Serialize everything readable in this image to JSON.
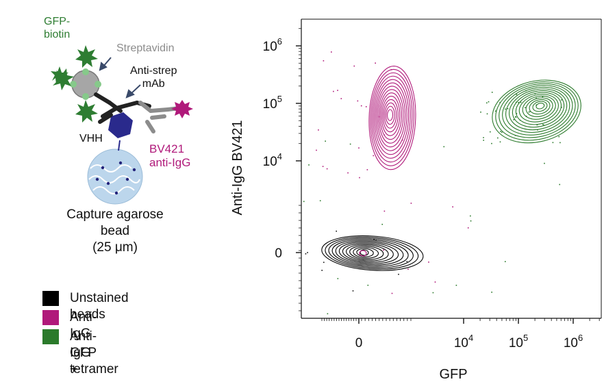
{
  "schematic": {
    "gfp_biotin_line1": "GFP-",
    "gfp_biotin_line2": "biotin",
    "streptavidin": "Streptavidin",
    "anti_strep_line1": "Anti-strep",
    "anti_strep_line2": "mAb",
    "vhh": "VHH",
    "bv421_line1": "BV421",
    "bv421_line2": "anti-IgG",
    "bead_line1": "Capture agarose",
    "bead_line2": "bead",
    "bead_line3": "(25 μm)"
  },
  "legend": [
    {
      "label": "Unstained beads",
      "label2": "",
      "color": "#000000"
    },
    {
      "label": "Anti-IgG",
      "label2": "",
      "color": "#b0197a"
    },
    {
      "label": "Anti-IgG +",
      "label2": "GFP tetramer",
      "color": "#2b7a2b"
    }
  ],
  "colors": {
    "gfp": "#2e7d32",
    "magenta": "#b0197a",
    "grey": "#8c8c8c",
    "navy": "#2a2a8c",
    "bead": "#b8d4ea"
  },
  "chart_data": {
    "type": "contour",
    "xlabel": "GFP",
    "ylabel": "Anti-IgG BV421",
    "x_scale": "biexponential",
    "y_scale": "biexponential",
    "x_ticks": [
      {
        "value": 0,
        "base": "0",
        "exp": ""
      },
      {
        "value": 10000,
        "base": "10",
        "exp": "4"
      },
      {
        "value": 100000,
        "base": "10",
        "exp": "5"
      },
      {
        "value": 1000000,
        "base": "10",
        "exp": "6"
      }
    ],
    "y_ticks": [
      {
        "value": 0,
        "base": "0",
        "exp": ""
      },
      {
        "value": 10000,
        "base": "10",
        "exp": "4"
      },
      {
        "value": 100000,
        "base": "10",
        "exp": "5"
      },
      {
        "value": 1000000,
        "base": "10",
        "exp": "6"
      }
    ],
    "series": [
      {
        "name": "Unstained beads",
        "color": "#000000",
        "center": {
          "x": 0,
          "y": 0
        },
        "levels": 12
      },
      {
        "name": "Anti-IgG",
        "color": "#b0197a",
        "center": {
          "x": 300,
          "y": 45000
        },
        "levels": 14
      },
      {
        "name": "Anti-IgG + GFP tetramer",
        "color": "#2b7a2b",
        "center": {
          "x": 250000,
          "y": 90000
        },
        "levels": 14
      }
    ]
  }
}
